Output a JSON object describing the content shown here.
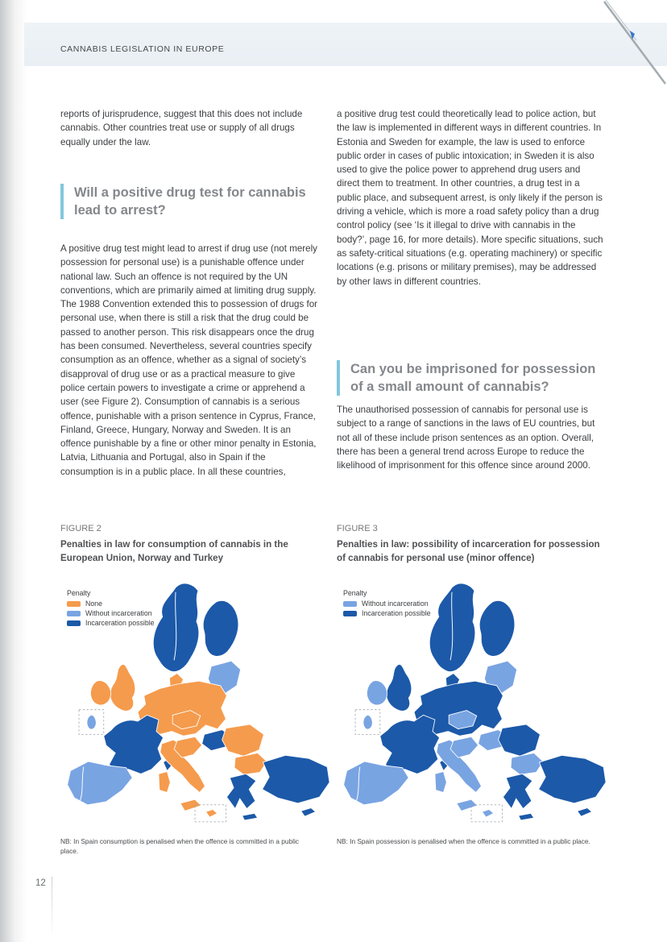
{
  "page": {
    "header": "CANNABIS LEGISLATION IN EUROPE",
    "page_number": "12"
  },
  "columns": {
    "left": {
      "para1": "reports of jurisprudence, suggest that this does not include cannabis. Other countries treat use or supply of all drugs equally under the law.",
      "heading": "Will a positive drug test for cannabis lead to arrest?",
      "para2": "A positive drug test might lead to arrest if drug use (not merely possession for personal use) is a punishable offence under national law. Such an offence is not required by the UN conventions, which are primarily aimed at limiting drug supply. The 1988 Convention extended this to possession of drugs for personal use, when there is still a risk that the drug could be passed to another person. This risk disappears once the drug has been consumed. Nevertheless, several countries specify consumption as an offence, whether as a signal of society’s disapproval of drug use or as a practical measure to give police certain powers to investigate a crime or apprehend a user (see Figure 2). Consumption of cannabis is a serious offence, punishable with a prison sentence in Cyprus, France, Finland, Greece, Hungary, Norway and Sweden. It is an offence punishable by a fine or other minor penalty in Estonia, Latvia, Lithuania and Portugal, also in Spain if the consumption is in a public place. In all these countries,"
    },
    "right": {
      "para1": "a positive drug test could theoretically lead to police action, but the law is implemented in different ways in different countries. In Estonia and Sweden for example, the law is used to enforce public order in cases of public intoxication; in Sweden it is also used to give the police power to apprehend drug users and direct them to treatment. In other countries, a drug test in a public place, and subsequent arrest, is only likely if the person is driving a vehicle, which is more a road safety policy than a drug control policy (see ‘Is it illegal to drive with cannabis in the body?’, page 16, for more details). More specific situations, such as safety-critical situations (e.g. operating machinery) or specific locations (e.g. prisons or military premises), may be addressed by other laws in different countries.",
      "heading": "Can you be imprisoned for possession of a small amount of cannabis?",
      "para2": "The unauthorised possession of cannabis for personal use is subject to a range of sanctions in the laws of EU countries, but not all of these include prison sentences as an option. Overall, there has been a general trend across Europe to reduce the likelihood of imprisonment for this offence since around 2000."
    }
  },
  "colors": {
    "none": "#F59B4D",
    "without_incarceration": "#79A4E2",
    "incarceration_possible": "#1C59A9",
    "sea": "#FFFFFF"
  },
  "figures": [
    {
      "label": "FIGURE 2",
      "title": "Penalties in law for consumption of cannabis in the European Union, Norway and Turkey",
      "legend_title": "Penalty",
      "legend": [
        {
          "label": "None",
          "key": "none"
        },
        {
          "label": "Without incarceration",
          "key": "without_incarceration"
        },
        {
          "label": "Incarceration possible",
          "key": "incarceration_possible"
        }
      ],
      "note": "NB: In Spain consumption is penalised when the offence is committed in a public place.",
      "region_fills": {
        "scandinavia": "incarceration_possible",
        "denmark": "none",
        "baltics": "without_incarceration",
        "uk": "none",
        "ireland": "none",
        "luxembourg": "without_incarceration",
        "france": "incarceration_possible",
        "iberia": "without_incarceration",
        "central_europe": "none",
        "czech": "none",
        "croatia_slovenia": "none",
        "italy": "none",
        "hungary": "incarceration_possible",
        "romania": "none",
        "bulgaria": "none",
        "greece": "incarceration_possible",
        "turkey": "incarceration_possible",
        "cyprus": "incarceration_possible",
        "malta": "none"
      }
    },
    {
      "label": "FIGURE 3",
      "title": "Penalties in law: possibility of incarceration for possession of cannabis for personal use (minor offence)",
      "legend_title": "Penalty",
      "legend": [
        {
          "label": "Without incarceration",
          "key": "without_incarceration"
        },
        {
          "label": "Incarceration possible",
          "key": "incarceration_possible"
        }
      ],
      "note": "NB: In Spain possession is penalised when the offence is committed in a public place.",
      "region_fills": {
        "scandinavia": "incarceration_possible",
        "denmark": "incarceration_possible",
        "baltics": "without_incarceration",
        "uk": "incarceration_possible",
        "ireland": "without_incarceration",
        "luxembourg": "without_incarceration",
        "france": "incarceration_possible",
        "iberia": "without_incarceration",
        "central_europe": "incarceration_possible",
        "czech": "without_incarceration",
        "croatia_slovenia": "without_incarceration",
        "italy": "without_incarceration",
        "hungary": "without_incarceration",
        "romania": "incarceration_possible",
        "bulgaria": "without_incarceration",
        "greece": "incarceration_possible",
        "turkey": "incarceration_possible",
        "cyprus": "incarceration_possible",
        "malta": "without_incarceration"
      }
    }
  ]
}
